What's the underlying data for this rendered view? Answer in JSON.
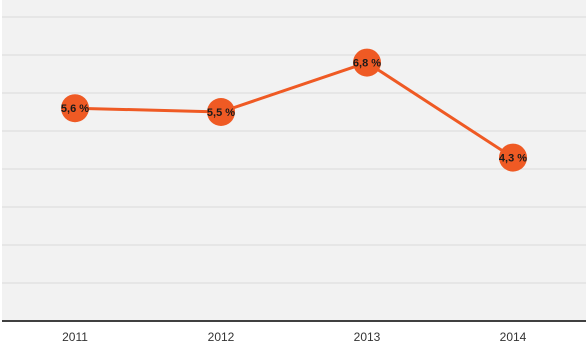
{
  "chart_data": {
    "type": "line",
    "categories": [
      "2011",
      "2012",
      "2013",
      "2014"
    ],
    "series": [
      {
        "values": [
          5.6,
          5.5,
          6.8,
          4.3
        ],
        "data_labels": [
          "5,6 %",
          "5,5 %",
          "6,8 %",
          "4,3 %"
        ]
      }
    ],
    "ylim": [
      0,
      8
    ],
    "y_gridline_step": 1,
    "grid": true,
    "y_tick_labels_shown": false,
    "legend": "none",
    "title": "",
    "xlabel": "",
    "ylabel": "",
    "colors": {
      "line": "#ef5a24",
      "marker": "#ef5a24",
      "grid": "#d9d9d9",
      "axis": "#404040",
      "plot_background": "#f2f2f2"
    }
  }
}
